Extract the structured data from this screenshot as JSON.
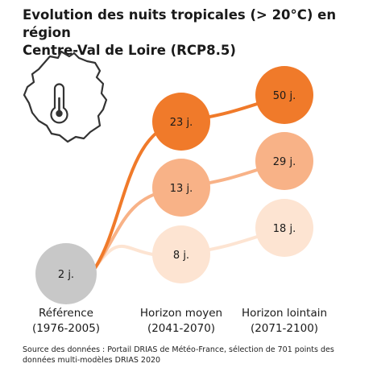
{
  "title_line1": "Evolution des nuits tropicales (> 20°C) en région",
  "title_line2": "Centre-Val de Loire (RCP8.5)",
  "source_line1": "Source des données : Portail DRIAS de Météo-France, sélection de 701 points des",
  "source_line2": "données multi-modèles DRIAS 2020",
  "colors": {
    "reference": "#c8c8c8",
    "high": "#f07a2a",
    "medium": "#f8b287",
    "low": "#fde4d2",
    "icon": "#333333"
  },
  "icons": [
    "region-map-icon",
    "thermometer-icon"
  ],
  "chart_data": {
    "type": "bubble",
    "unit": "j.",
    "periods": [
      {
        "label": "Référence",
        "sub": "(1976-2005)"
      },
      {
        "label": "Horizon moyen",
        "sub": "(2041-2070)"
      },
      {
        "label": "Horizon lointain",
        "sub": "(2071-2100)"
      }
    ],
    "reference": {
      "value": 2,
      "text": "2 j."
    },
    "series": [
      {
        "level": "high",
        "values": [
          2,
          23,
          50
        ],
        "texts": [
          "2 j.",
          "23 j.",
          "50 j."
        ]
      },
      {
        "level": "medium",
        "values": [
          2,
          13,
          29
        ],
        "texts": [
          "2 j.",
          "13 j.",
          "29 j."
        ]
      },
      {
        "level": "low",
        "values": [
          2,
          8,
          18
        ],
        "texts": [
          "2 j.",
          "8 j.",
          "18 j."
        ]
      }
    ]
  }
}
